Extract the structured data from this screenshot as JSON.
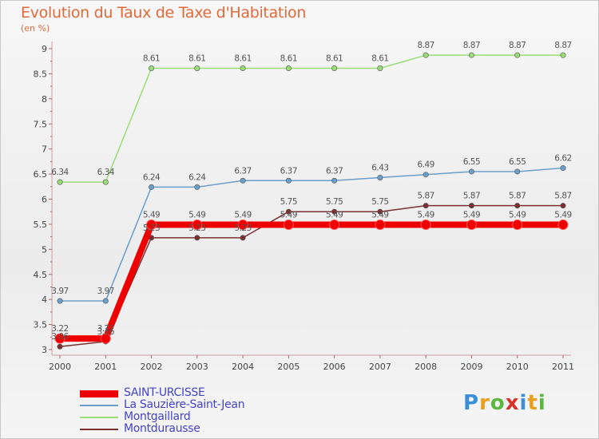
{
  "header": {
    "title": "Evolution du Taux de Taxe d'Habitation",
    "subtitle": "(en %)"
  },
  "brand": {
    "name": "Proxiti"
  },
  "chart_data": {
    "type": "line",
    "title": "Evolution du Taux de Taxe d'Habitation",
    "ylabel": "(en %)",
    "xlabel": "",
    "grid": false,
    "x": [
      "2000",
      "2001",
      "2002",
      "2003",
      "2004",
      "2005",
      "2006",
      "2007",
      "2008",
      "2009",
      "2010",
      "2011"
    ],
    "ylim": [
      3,
      9
    ],
    "yticks": [
      "3",
      "3.5",
      "4",
      "4.5",
      "5",
      "5.5",
      "6",
      "6.5",
      "7",
      "7.5",
      "8",
      "8.5",
      "9"
    ],
    "series": [
      {
        "name": "SAINT-URCISSE",
        "color": "#ee0000",
        "values": [
          3.22,
          3.22,
          5.49,
          5.49,
          5.49,
          5.49,
          5.49,
          5.49,
          5.49,
          5.49,
          5.49,
          5.49
        ],
        "labels": [
          "3.22",
          "3.22",
          "5.49",
          "5.49",
          "5.49",
          "5.49",
          "5.49",
          "5.49",
          "5.49",
          "5.49",
          "5.49",
          "5.49"
        ]
      },
      {
        "name": "La Sauzière-Saint-Jean",
        "color": "#6a9fcc",
        "values": [
          3.97,
          3.97,
          6.24,
          6.24,
          6.37,
          6.37,
          6.37,
          6.43,
          6.49,
          6.55,
          6.55,
          6.62
        ],
        "labels": [
          "3.97",
          "3.97",
          "6.24",
          "6.24",
          "6.37",
          "6.37",
          "6.37",
          "6.43",
          "6.49",
          "6.55",
          "6.55",
          "6.62"
        ]
      },
      {
        "name": "Montgaillard",
        "color": "#99dd77",
        "values": [
          6.34,
          6.34,
          8.61,
          8.61,
          8.61,
          8.61,
          8.61,
          8.61,
          8.87,
          8.87,
          8.87,
          8.87
        ],
        "labels": [
          "6.34",
          "6.34",
          "8.61",
          "8.61",
          "8.61",
          "8.61",
          "8.61",
          "8.61",
          "8.87",
          "8.87",
          "8.87",
          "8.87"
        ]
      },
      {
        "name": "Montdurausse",
        "color": "#7a3030",
        "values": [
          3.06,
          3.16,
          5.23,
          5.23,
          5.23,
          5.75,
          5.75,
          5.75,
          5.87,
          5.87,
          5.87,
          5.87
        ],
        "labels": [
          "3.06",
          "3.16",
          "5.23",
          "5.23",
          "5.23",
          "5.75",
          "5.75",
          "5.75",
          "5.87",
          "5.87",
          "5.87",
          "5.87"
        ]
      }
    ]
  }
}
